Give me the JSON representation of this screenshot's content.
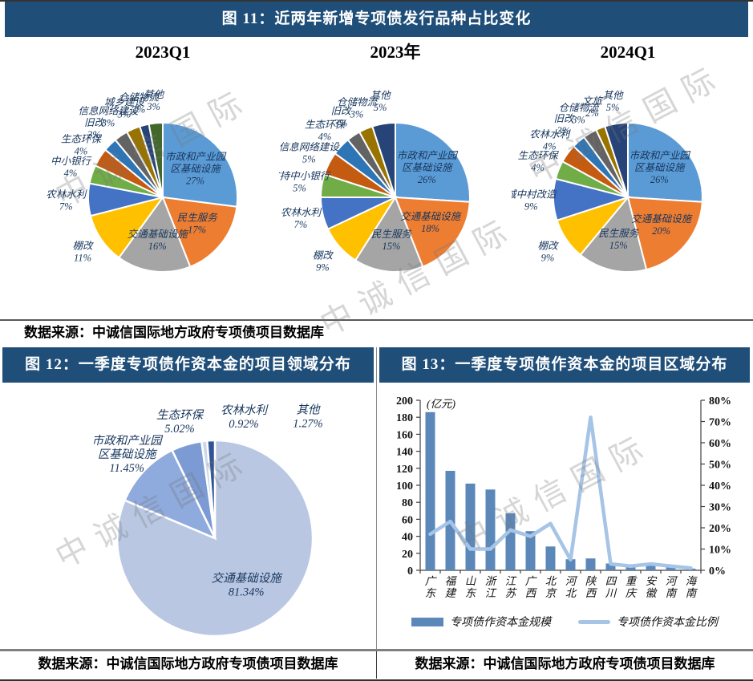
{
  "watermark": "中诚信国际",
  "colors": {
    "header_bg": "#1F4E79",
    "header_text": "#FFFFFF",
    "pie_label": "#17365D",
    "palette": [
      "#5B9BD5",
      "#ED7D31",
      "#A5A5A5",
      "#FFC000",
      "#4472C4",
      "#70AD47",
      "#C55A11",
      "#2E75B6",
      "#636363",
      "#997300",
      "#264478",
      "#43682B"
    ],
    "fig12_palette": [
      "#B9C7E3",
      "#8FAADC",
      "#7C9AD4",
      "#CDD8EC",
      "#2F5597"
    ],
    "bar": "#5B87B9",
    "line": "#A6C4E6",
    "axis": "#404040"
  },
  "fig11": {
    "header": "图 11：近两年新增专项债发行品种占比变化",
    "source": "数据来源：中诚信国际地方政府专项债项目数据库"
  },
  "fig12": {
    "header": "图 12：一季度专项债作资本金的项目领域分布",
    "source": "数据来源：中诚信国际地方政府专项债项目数据库"
  },
  "fig13": {
    "header": "图 13：一季度专项债作资本金的项目区域分布",
    "source": "数据来源：中诚信国际地方政府专项债项目数据库"
  },
  "chart_data": [
    {
      "type": "pie",
      "title": "2023Q1",
      "categories": [
        "市政和产业园区基础设施",
        "民生服务",
        "交通基础设施",
        "棚改",
        "农林水利",
        "中小银行",
        "生态环保",
        "旧改",
        "信息网络建设",
        "城乡建设",
        "仓储物流",
        "其他"
      ],
      "values": [
        27,
        17,
        16,
        11,
        7,
        4,
        4,
        3,
        3,
        3,
        2,
        3
      ],
      "unit": "%"
    },
    {
      "type": "pie",
      "title": "2023年",
      "categories": [
        "市政和产业园区基础设施",
        "交通基础设施",
        "民生服务",
        "棚改",
        "农林水利",
        "支持中小银行",
        "信息网络建设",
        "生态环保",
        "旧改",
        "仓储物流",
        "其他"
      ],
      "values": [
        26,
        18,
        15,
        9,
        7,
        5,
        5,
        4,
        3,
        3,
        5
      ],
      "unit": "%"
    },
    {
      "type": "pie",
      "title": "2024Q1",
      "categories": [
        "市政和产业园区基础设施",
        "交通基础设施",
        "民生服务",
        "棚改",
        "城中村改造",
        "生态环保",
        "农林水利",
        "旧改",
        "仓储物流",
        "文旅",
        "其他"
      ],
      "values": [
        26,
        20,
        15,
        9,
        9,
        4,
        4,
        3,
        3,
        2,
        5
      ],
      "unit": "%"
    },
    {
      "type": "pie",
      "title": "一季度专项债作资本金的项目领域分布",
      "categories": [
        "交通基础设施",
        "市政和产业园区基础设施",
        "生态环保",
        "农林水利",
        "其他"
      ],
      "values": [
        81.34,
        11.45,
        5.02,
        0.92,
        1.27
      ],
      "unit": "%"
    },
    {
      "type": "bar",
      "title": "一季度专项债作资本金的项目区域分布",
      "categories": [
        "广东",
        "福建",
        "山东",
        "浙江",
        "江苏",
        "广西",
        "北京",
        "河北",
        "陕西",
        "四川",
        "重庆",
        "安徽",
        "河南",
        "海南"
      ],
      "series": [
        {
          "name": "专项债作资本金规模",
          "type": "bar",
          "axis": "left",
          "values": [
            186,
            117,
            102,
            95,
            67,
            46,
            28,
            13,
            14,
            8,
            6,
            6,
            4,
            2
          ]
        },
        {
          "name": "专项债作资本金比例",
          "type": "line",
          "axis": "right",
          "values": [
            17,
            23,
            10,
            10,
            19,
            16,
            22,
            5,
            72,
            3,
            2,
            3,
            2,
            1
          ]
        }
      ],
      "unit_label": "(亿元)",
      "left_axis": {
        "min": 0,
        "max": 200,
        "step": 20
      },
      "right_axis": {
        "min": 0,
        "max": 80,
        "step": 10,
        "suffix": "%"
      },
      "legend": [
        "专项债作资本金规模",
        "专项债作资本金比例"
      ],
      "legend_position": "bottom",
      "grid": false
    }
  ]
}
